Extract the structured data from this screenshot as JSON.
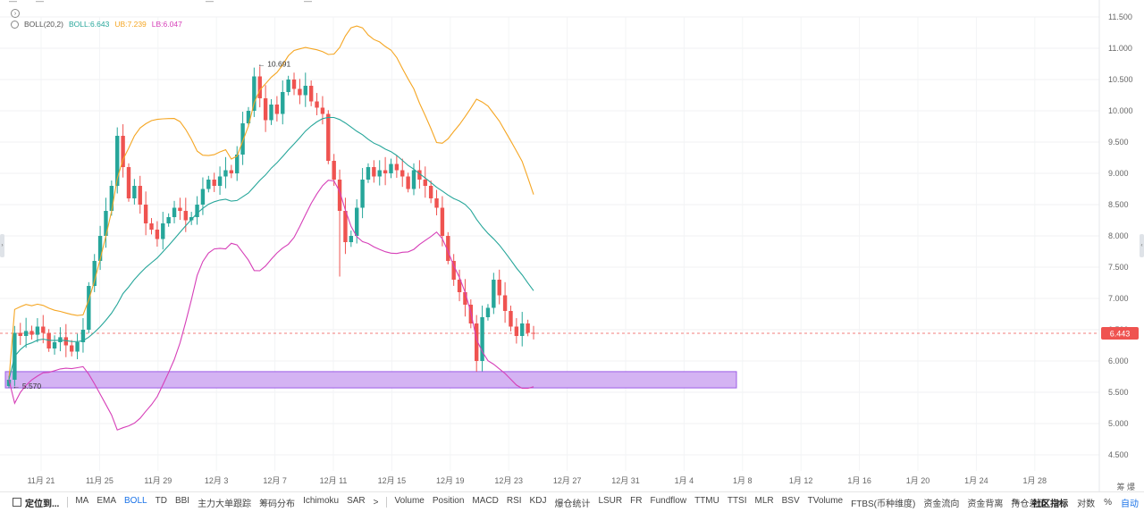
{
  "legend": {
    "name": "BOLL(20,2)",
    "mid": "BOLL:6.643",
    "ub": "UB:7.239",
    "lb": "LB:6.047",
    "colors": {
      "mid": "#26a69a",
      "ub": "#f5a623",
      "lb": "#d63fb8"
    }
  },
  "price_tag": {
    "value": "6.443",
    "color": "#ef5350"
  },
  "annotations": {
    "high": "← 10.691",
    "low": "← 5.570"
  },
  "axis_extra": "筹 爆",
  "bottom_bar": {
    "first": "定位到...",
    "group1": [
      "MA",
      "EMA",
      "BOLL",
      "TD",
      "BBI",
      "主力大单跟踪",
      "筹码分布",
      "Ichimoku",
      "SAR"
    ],
    "more1": ">",
    "group2": [
      "Volume",
      "Position",
      "MACD",
      "RSI",
      "KDJ",
      "爆仓统计",
      "LSUR",
      "FR",
      "Fundflow",
      "TTMU",
      "TTSI",
      "MLR",
      "BSV",
      "TVolume",
      "FTBS(币种维度)",
      "资金流向",
      "资金背离",
      "持仓差值"
    ],
    "more2": ">",
    "community": "社区指标",
    "log": "对数",
    "percent": "%",
    "auto": "自动"
  },
  "chart_data": {
    "type": "candlestick",
    "indicator": "BOLL(20,2)",
    "x_tick_labels": [
      "11月 21",
      "11月 25",
      "11月 29",
      "12月 3",
      "12月 7",
      "12月 11",
      "12月 15",
      "12月 19",
      "12月 23",
      "12月 27",
      "12月 31",
      "1月 4",
      "1月 8",
      "1月 12",
      "1月 16",
      "1月 20",
      "1月 24",
      "1月 28"
    ],
    "y_tick_labels": [
      "11.500",
      "11.000",
      "10.500",
      "10.000",
      "9.500",
      "9.000",
      "8.500",
      "8.000",
      "7.500",
      "7.000",
      "6.500",
      "6.000",
      "5.500",
      "5.000",
      "4.500"
    ],
    "ylim": [
      4.5,
      11.5
    ],
    "current_price": 6.443,
    "marked_high": 10.691,
    "marked_low": 5.57,
    "support_zone": [
      5.57,
      5.83
    ],
    "close": [
      5.7,
      6.45,
      6.4,
      6.48,
      6.42,
      6.55,
      6.45,
      6.2,
      6.3,
      6.38,
      6.25,
      6.15,
      6.3,
      6.5,
      7.2,
      7.6,
      8.0,
      8.4,
      8.8,
      9.6,
      9.1,
      8.6,
      8.8,
      8.5,
      8.2,
      8.1,
      7.95,
      8.2,
      8.3,
      8.45,
      8.4,
      8.25,
      8.3,
      8.5,
      8.75,
      8.9,
      8.8,
      8.95,
      9.05,
      9.0,
      9.3,
      9.8,
      10.0,
      10.55,
      10.2,
      9.85,
      10.1,
      9.95,
      10.3,
      10.5,
      10.35,
      10.25,
      10.4,
      10.15,
      10.05,
      9.95,
      9.2,
      8.9,
      8.4,
      7.9,
      8.0,
      8.45,
      8.9,
      9.1,
      8.95,
      9.05,
      9.0,
      9.15,
      9.05,
      8.95,
      8.75,
      9.05,
      8.9,
      8.8,
      8.6,
      8.45,
      8.0,
      7.6,
      7.3,
      7.1,
      6.9,
      6.6,
      6.0,
      6.7,
      6.85,
      7.3,
      7.05,
      6.8,
      6.55,
      6.4,
      6.6,
      6.45,
      6.443
    ]
  }
}
